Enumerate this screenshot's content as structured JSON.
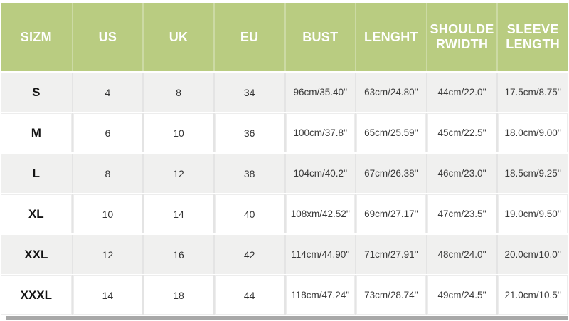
{
  "chart_data": {
    "type": "table",
    "columns": [
      "SIZM",
      "US",
      "UK",
      "EU",
      "BUST",
      "LENGHT",
      "SHOULDE\nRWIDTH",
      "SLEEVE\nLENGTH"
    ],
    "rows": [
      [
        "S",
        "4",
        "8",
        "34",
        "96cm/35.40''",
        "63cm/24.80''",
        "44cm/22.0''",
        "17.5cm/8.75''"
      ],
      [
        "M",
        "6",
        "10",
        "36",
        "100cm/37.8''",
        "65cm/25.59''",
        "45cm/22.5''",
        "18.0cm/9.00''"
      ],
      [
        "L",
        "8",
        "12",
        "38",
        "104cm/40.2''",
        "67cm/26.38''",
        "46cm/23.0''",
        "18.5cm/9.25''"
      ],
      [
        "XL",
        "10",
        "14",
        "40",
        "108xm/42.52''",
        "69cm/27.17''",
        "47cm/23.5''",
        "19.0cm/9.50''"
      ],
      [
        "XXL",
        "12",
        "16",
        "42",
        "114cm/44.90''",
        "71cm/27.91''",
        "48cm/24.0''",
        "20.0cm/10.0''"
      ],
      [
        "XXXL",
        "14",
        "18",
        "44",
        "118cm/47.24''",
        "73cm/28.74''",
        "49cm/24.5''",
        "21.0cm/10.5''"
      ]
    ]
  },
  "colors": {
    "header_bg": "#b9cc81",
    "header_text": "#ffffff",
    "row_alt_bg": "#f0f0ef",
    "row_bg": "#ffffff",
    "bottom_bar": "#a8a8a8"
  }
}
